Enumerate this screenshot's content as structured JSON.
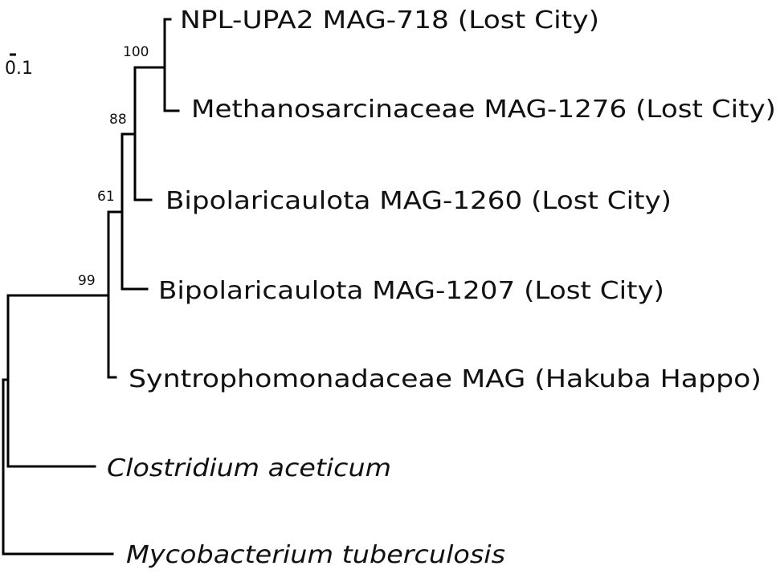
{
  "scale": {
    "value_label": "0.1"
  },
  "taxa": [
    {
      "label": "NPL-UPA2 MAG-718 (Lost City)",
      "italic": false
    },
    {
      "label": "Methanosarcinaceae MAG-1276 (Lost City)",
      "italic": false
    },
    {
      "label": "Bipolaricaulota MAG-1260 (Lost City)",
      "italic": false
    },
    {
      "label": "Bipolaricaulota MAG-1207 (Lost City)",
      "italic": false
    },
    {
      "label": "Syntrophomonadaceae MAG (Hakuba Happo)",
      "italic": false
    },
    {
      "label": "Clostridium aceticum",
      "italic": true
    },
    {
      "label": "Mycobacterium tuberculosis",
      "italic": true
    }
  ],
  "support_values": [
    "100",
    "88",
    "61",
    "99"
  ]
}
